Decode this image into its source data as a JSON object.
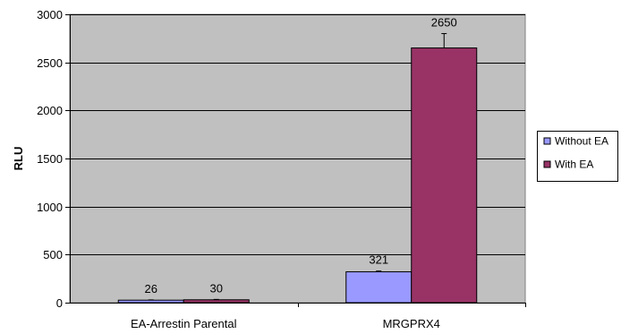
{
  "chart_data": {
    "type": "bar",
    "title": "",
    "xlabel": "",
    "ylabel": "RLU",
    "categories": [
      "EA-Arrestin Parental",
      "MRGPRX4"
    ],
    "series": [
      {
        "name": "Without EA",
        "values": [
          26,
          321
        ],
        "errors": [
          3,
          8
        ],
        "color": "#9999ff"
      },
      {
        "name": "With EA",
        "values": [
          30,
          2650
        ],
        "errors": [
          4,
          150
        ],
        "color": "#993366"
      }
    ],
    "ylim": [
      0,
      3000
    ],
    "yticks": [
      0,
      500,
      1000,
      1500,
      2000,
      2500,
      3000
    ],
    "grid": true,
    "plot_background": "#c0c0c0",
    "legend_position": "right"
  }
}
